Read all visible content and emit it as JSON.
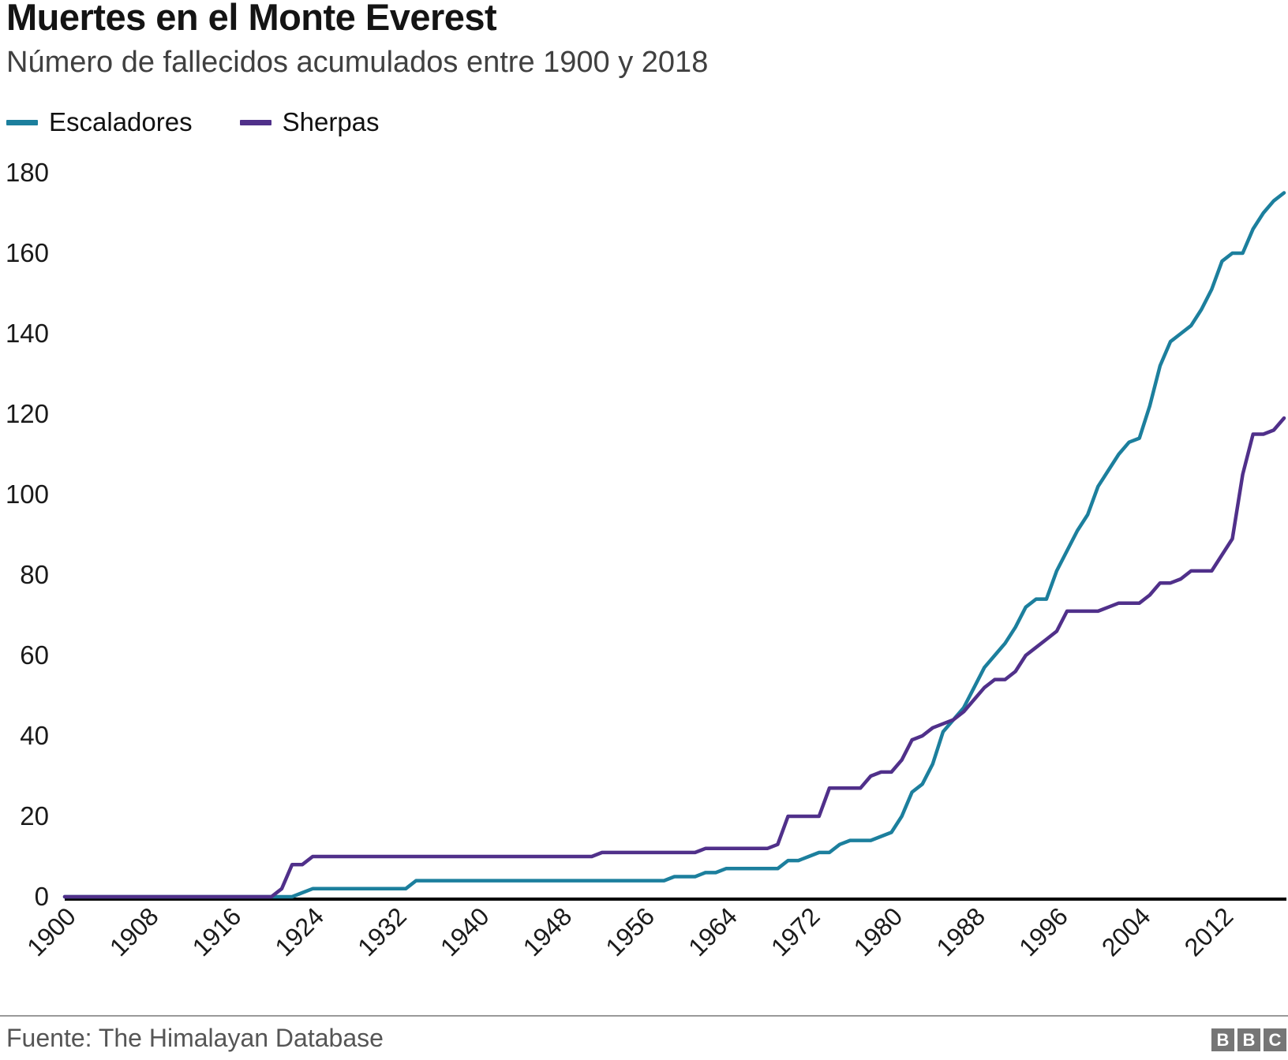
{
  "header": {
    "title": "Muertes en el Monte Everest",
    "subtitle": "Número de fallecidos acumulados entre 1900 y 2018"
  },
  "legend": {
    "items": [
      {
        "label": "Escaladores",
        "color": "#1c7f9d"
      },
      {
        "label": "Sherpas",
        "color": "#50308a"
      }
    ]
  },
  "footer": {
    "source": "Fuente: The Himalayan Database",
    "logo_blocks": [
      "B",
      "B",
      "C"
    ]
  },
  "chart_data": {
    "type": "line",
    "title": "Muertes en el Monte Everest",
    "subtitle": "Número de fallecidos acumulados entre 1900 y 2018",
    "xlabel": "",
    "ylabel": "",
    "x_start": 1900,
    "x_end": 2018,
    "x_step": 1,
    "x_ticks": [
      1900,
      1908,
      1916,
      1924,
      1932,
      1940,
      1948,
      1956,
      1964,
      1972,
      1980,
      1988,
      1996,
      2004,
      2012
    ],
    "y_ticks": [
      0,
      20,
      40,
      60,
      80,
      100,
      120,
      140,
      160,
      180
    ],
    "ylim": [
      0,
      180
    ],
    "grid": false,
    "legend_position": "top-left",
    "series": [
      {
        "name": "Escaladores",
        "color": "#1c7f9d",
        "values": [
          0,
          0,
          0,
          0,
          0,
          0,
          0,
          0,
          0,
          0,
          0,
          0,
          0,
          0,
          0,
          0,
          0,
          0,
          0,
          0,
          0,
          0,
          0,
          1,
          2,
          2,
          2,
          2,
          2,
          2,
          2,
          2,
          2,
          2,
          4,
          4,
          4,
          4,
          4,
          4,
          4,
          4,
          4,
          4,
          4,
          4,
          4,
          4,
          4,
          4,
          4,
          4,
          4,
          4,
          4,
          4,
          4,
          4,
          4,
          5,
          5,
          5,
          6,
          6,
          7,
          7,
          7,
          7,
          7,
          7,
          9,
          9,
          10,
          11,
          11,
          13,
          14,
          14,
          14,
          15,
          16,
          20,
          26,
          28,
          33,
          41,
          44,
          47,
          52,
          57,
          60,
          63,
          67,
          72,
          74,
          74,
          81,
          86,
          91,
          95,
          102,
          106,
          110,
          113,
          114,
          122,
          132,
          138,
          140,
          142,
          146,
          151,
          158,
          160,
          160,
          166,
          170,
          173,
          175
        ]
      },
      {
        "name": "Sherpas",
        "color": "#50308a",
        "values": [
          0,
          0,
          0,
          0,
          0,
          0,
          0,
          0,
          0,
          0,
          0,
          0,
          0,
          0,
          0,
          0,
          0,
          0,
          0,
          0,
          0,
          2,
          8,
          8,
          10,
          10,
          10,
          10,
          10,
          10,
          10,
          10,
          10,
          10,
          10,
          10,
          10,
          10,
          10,
          10,
          10,
          10,
          10,
          10,
          10,
          10,
          10,
          10,
          10,
          10,
          10,
          10,
          11,
          11,
          11,
          11,
          11,
          11,
          11,
          11,
          11,
          11,
          12,
          12,
          12,
          12,
          12,
          12,
          12,
          13,
          20,
          20,
          20,
          20,
          27,
          27,
          27,
          27,
          30,
          31,
          31,
          34,
          39,
          40,
          42,
          43,
          44,
          46,
          49,
          52,
          54,
          54,
          56,
          60,
          62,
          64,
          66,
          71,
          71,
          71,
          71,
          72,
          73,
          73,
          73,
          75,
          78,
          78,
          79,
          81,
          81,
          81,
          85,
          89,
          105,
          115,
          115,
          116,
          119
        ]
      }
    ]
  }
}
